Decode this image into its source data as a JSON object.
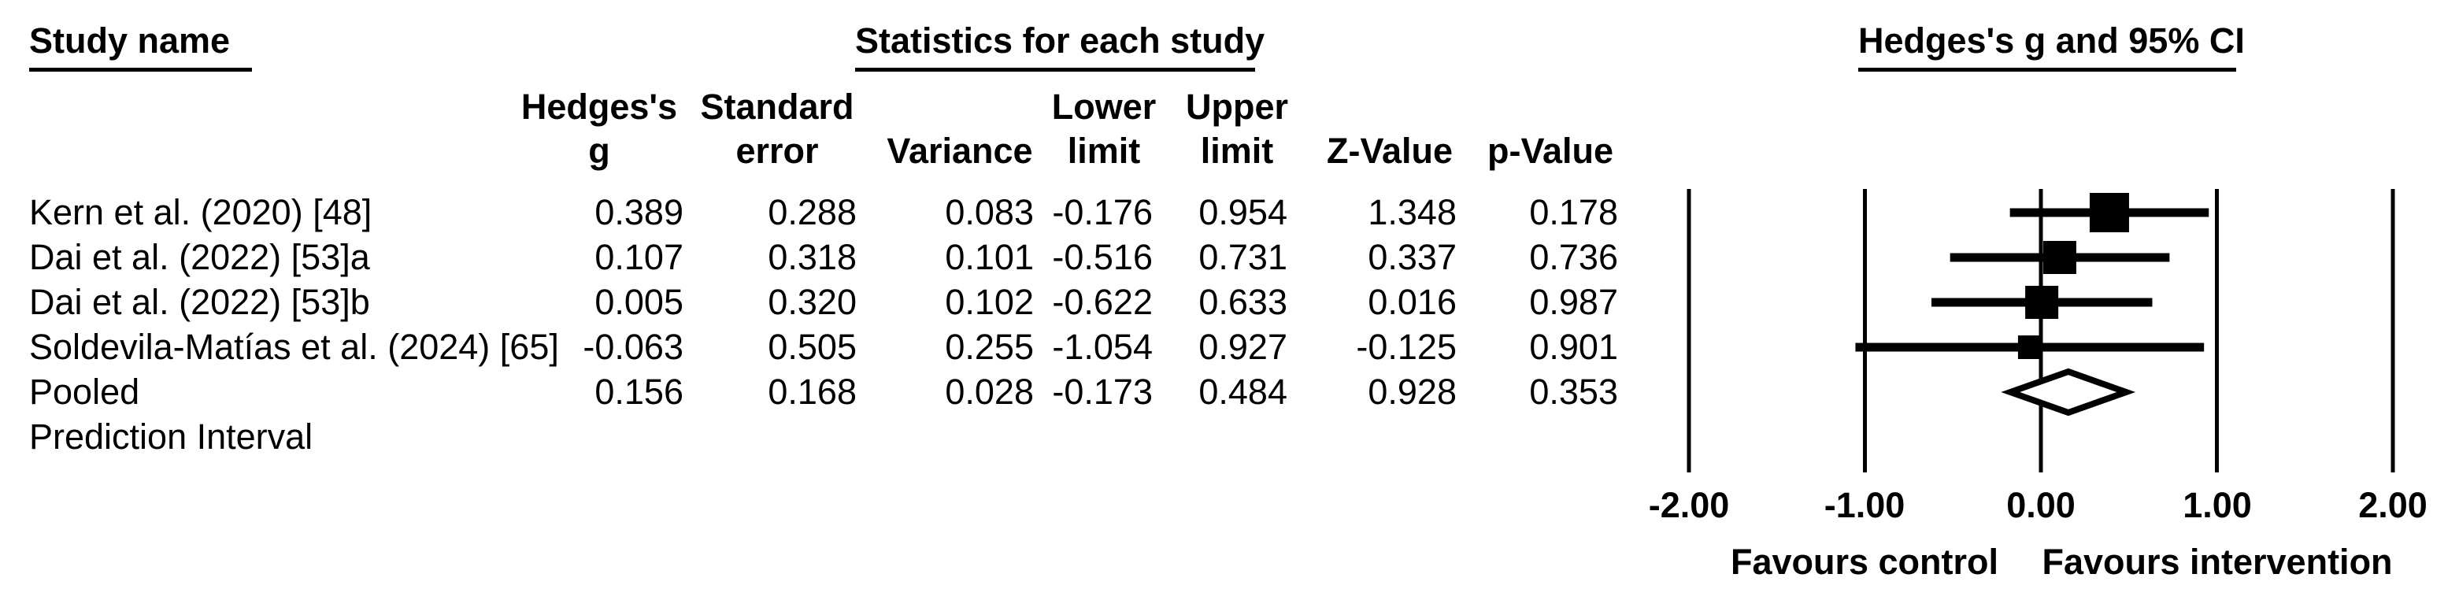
{
  "header": {
    "study_col_title": "Study name",
    "stats_title": "Statistics for each study"
  },
  "table": {
    "columns": [
      {
        "line1": "Hedges's",
        "line2": "g"
      },
      {
        "line1": "Standard",
        "line2": "error"
      },
      {
        "line1": "",
        "line2": "Variance"
      },
      {
        "line1": "Lower",
        "line2": "limit"
      },
      {
        "line1": "Upper",
        "line2": "limit"
      },
      {
        "line1": "",
        "line2": "Z-Value"
      },
      {
        "line1": "",
        "line2": "p-Value"
      }
    ],
    "rows": [
      {
        "study": "Kern et al. (2020) [48]",
        "g": "0.389",
        "se": "0.288",
        "variance": "0.083",
        "lower": "-0.176",
        "upper": "0.954",
        "z": "1.348",
        "p": "0.178"
      },
      {
        "study": "Dai et al. (2022) [53]a",
        "g": "0.107",
        "se": "0.318",
        "variance": "0.101",
        "lower": "-0.516",
        "upper": "0.731",
        "z": "0.337",
        "p": "0.736"
      },
      {
        "study": "Dai et al. (2022) [53]b",
        "g": "0.005",
        "se": "0.320",
        "variance": "0.102",
        "lower": "-0.622",
        "upper": "0.633",
        "z": "0.016",
        "p": "0.987"
      },
      {
        "study": "Soldevila-Matías et al. (2024) [65]",
        "g": "-0.063",
        "se": "0.505",
        "variance": "0.255",
        "lower": "-1.054",
        "upper": "0.927",
        "z": "-0.125",
        "p": "0.901"
      },
      {
        "study": "Pooled",
        "g": "0.156",
        "se": "0.168",
        "variance": "0.028",
        "lower": "-0.173",
        "upper": "0.484",
        "z": "0.928",
        "p": "0.353"
      },
      {
        "study": "Prediction Interval",
        "g": "",
        "se": "",
        "variance": "",
        "lower": "",
        "upper": "",
        "z": "",
        "p": ""
      }
    ]
  },
  "chart_data": {
    "type": "forest",
    "title": "Hedges's g and 95% CI",
    "x_axis": {
      "min": -2,
      "max": 2,
      "ticks": [
        -2,
        -1,
        0,
        1,
        2
      ],
      "tick_labels": [
        "-2.00",
        "-1.00",
        "0.00",
        "1.00",
        "2.00"
      ]
    },
    "studies": [
      {
        "name": "Kern et al. (2020) [48]",
        "g": 0.389,
        "se": 0.288,
        "variance": 0.083,
        "ci_lower": -0.176,
        "ci_upper": 0.954,
        "z": 1.348,
        "p": 0.178,
        "marker": "square",
        "marker_size": 50
      },
      {
        "name": "Dai et al. (2022) [53]a",
        "g": 0.107,
        "se": 0.318,
        "variance": 0.101,
        "ci_lower": -0.516,
        "ci_upper": 0.731,
        "z": 0.337,
        "p": 0.736,
        "marker": "square",
        "marker_size": 42
      },
      {
        "name": "Dai et al. (2022) [53]b",
        "g": 0.005,
        "se": 0.32,
        "variance": 0.102,
        "ci_lower": -0.622,
        "ci_upper": 0.633,
        "z": 0.016,
        "p": 0.987,
        "marker": "square",
        "marker_size": 42
      },
      {
        "name": "Soldevila-Matías et al. (2024) [65]",
        "g": -0.063,
        "se": 0.505,
        "variance": 0.255,
        "ci_lower": -1.054,
        "ci_upper": 0.927,
        "z": -0.125,
        "p": 0.901,
        "marker": "square",
        "marker_size": 30
      }
    ],
    "pooled": {
      "name": "Pooled",
      "g": 0.156,
      "se": 0.168,
      "variance": 0.028,
      "ci_lower": -0.173,
      "ci_upper": 0.484,
      "z": 0.928,
      "p": 0.353,
      "marker": "diamond"
    },
    "prediction_interval": {
      "name": "Prediction Interval"
    },
    "annotations": {
      "left": "Favours control",
      "right": "Favours intervention"
    },
    "grid": "vertical-lines-at-ticks",
    "colors": {
      "foreground": "#000000",
      "background": "#ffffff"
    }
  }
}
